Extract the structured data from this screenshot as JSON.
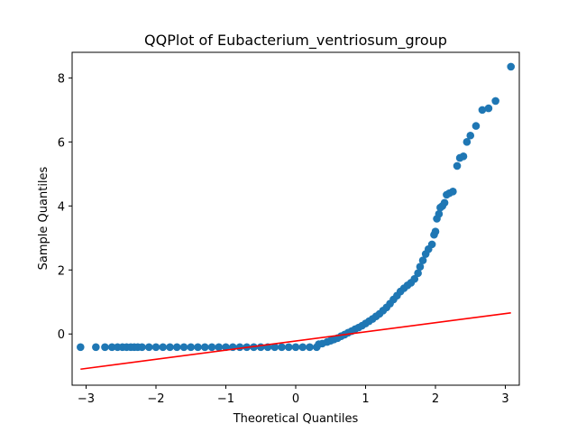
{
  "chart_data": {
    "type": "scatter",
    "title": "QQPlot of Eubacterium_ventriosum_group",
    "xlabel": "Theoretical Quantiles",
    "ylabel": "Sample Quantiles",
    "xlim": [
      -3.2,
      3.2
    ],
    "ylim": [
      -1.6,
      8.8
    ],
    "xticks": [
      -3,
      -2,
      -1,
      0,
      1,
      2,
      3
    ],
    "yticks": [
      0,
      2,
      4,
      6,
      8
    ],
    "grid": false,
    "colors": {
      "points": "#1f77b4",
      "line": "#ff0000"
    },
    "series": [
      {
        "kind": "points",
        "points": [
          [
            -3.08,
            -0.41
          ],
          [
            -2.86,
            -0.41
          ],
          [
            -2.73,
            -0.41
          ],
          [
            -2.63,
            -0.41
          ],
          [
            -2.55,
            -0.41
          ],
          [
            -2.48,
            -0.41
          ],
          [
            -2.42,
            -0.41
          ],
          [
            -2.36,
            -0.41
          ],
          [
            -2.31,
            -0.41
          ],
          [
            -2.26,
            -0.41
          ],
          [
            -2.2,
            -0.41
          ],
          [
            -2.1,
            -0.41
          ],
          [
            -2.0,
            -0.41
          ],
          [
            -1.9,
            -0.41
          ],
          [
            -1.8,
            -0.41
          ],
          [
            -1.7,
            -0.41
          ],
          [
            -1.6,
            -0.41
          ],
          [
            -1.5,
            -0.41
          ],
          [
            -1.4,
            -0.41
          ],
          [
            -1.3,
            -0.41
          ],
          [
            -1.2,
            -0.41
          ],
          [
            -1.1,
            -0.41
          ],
          [
            -1.0,
            -0.41
          ],
          [
            -0.9,
            -0.41
          ],
          [
            -0.8,
            -0.41
          ],
          [
            -0.7,
            -0.41
          ],
          [
            -0.6,
            -0.41
          ],
          [
            -0.5,
            -0.41
          ],
          [
            -0.4,
            -0.41
          ],
          [
            -0.3,
            -0.41
          ],
          [
            -0.2,
            -0.41
          ],
          [
            -0.1,
            -0.41
          ],
          [
            0.0,
            -0.41
          ],
          [
            0.1,
            -0.41
          ],
          [
            0.2,
            -0.41
          ],
          [
            0.3,
            -0.41
          ],
          [
            0.33,
            -0.32
          ],
          [
            0.38,
            -0.3
          ],
          [
            0.45,
            -0.25
          ],
          [
            0.5,
            -0.21
          ],
          [
            0.55,
            -0.17
          ],
          [
            0.6,
            -0.13
          ],
          [
            0.65,
            -0.07
          ],
          [
            0.7,
            -0.02
          ],
          [
            0.75,
            0.04
          ],
          [
            0.8,
            0.09
          ],
          [
            0.85,
            0.15
          ],
          [
            0.9,
            0.2
          ],
          [
            0.95,
            0.26
          ],
          [
            1.0,
            0.33
          ],
          [
            1.05,
            0.4
          ],
          [
            1.1,
            0.47
          ],
          [
            1.15,
            0.55
          ],
          [
            1.2,
            0.63
          ],
          [
            1.25,
            0.73
          ],
          [
            1.3,
            0.83
          ],
          [
            1.35,
            0.95
          ],
          [
            1.4,
            1.08
          ],
          [
            1.45,
            1.2
          ],
          [
            1.5,
            1.33
          ],
          [
            1.55,
            1.43
          ],
          [
            1.6,
            1.52
          ],
          [
            1.65,
            1.6
          ],
          [
            1.7,
            1.72
          ],
          [
            1.75,
            1.9
          ],
          [
            1.78,
            2.1
          ],
          [
            1.82,
            2.3
          ],
          [
            1.86,
            2.5
          ],
          [
            1.9,
            2.65
          ],
          [
            1.95,
            2.8
          ],
          [
            1.98,
            3.1
          ],
          [
            2.0,
            3.2
          ],
          [
            2.02,
            3.6
          ],
          [
            2.05,
            3.75
          ],
          [
            2.07,
            3.95
          ],
          [
            2.1,
            4.0
          ],
          [
            2.13,
            4.1
          ],
          [
            2.16,
            4.35
          ],
          [
            2.2,
            4.4
          ],
          [
            2.25,
            4.45
          ],
          [
            2.31,
            5.25
          ],
          [
            2.35,
            5.5
          ],
          [
            2.4,
            5.55
          ],
          [
            2.45,
            6.0
          ],
          [
            2.5,
            6.2
          ],
          [
            2.58,
            6.5
          ],
          [
            2.67,
            7.0
          ],
          [
            2.76,
            7.05
          ],
          [
            2.86,
            7.28
          ],
          [
            3.08,
            8.35
          ]
        ]
      },
      {
        "kind": "line",
        "points": [
          [
            -3.08,
            -1.1
          ],
          [
            3.08,
            0.66
          ]
        ]
      }
    ]
  }
}
